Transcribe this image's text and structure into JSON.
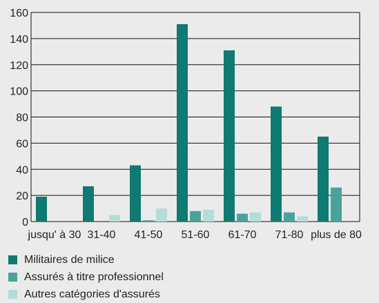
{
  "chart_data": {
    "type": "bar",
    "categories": [
      "jusqu' à 30",
      "31-40",
      "41-50",
      "51-60",
      "61-70",
      "71-80",
      "plus de 80"
    ],
    "series": [
      {
        "name": "Militaires de milice",
        "color": "#0f7a72",
        "values": [
          19,
          27,
          43,
          151,
          131,
          88,
          65
        ]
      },
      {
        "name": "Assurés à titre professionnel",
        "color": "#4aa39b",
        "values": [
          0,
          0,
          1,
          8,
          6,
          7,
          26
        ]
      },
      {
        "name": "Autres catégories d'assurés",
        "color": "#b5ddd8",
        "values": [
          0,
          5,
          10,
          9,
          7,
          4,
          0
        ]
      }
    ],
    "ylim": [
      0,
      160
    ],
    "yticks": [
      0,
      20,
      40,
      60,
      80,
      100,
      120,
      140,
      160
    ],
    "grid": true,
    "legend": "bottom",
    "colors": {
      "background": "#ebebeb",
      "gridline": "#111111"
    }
  }
}
